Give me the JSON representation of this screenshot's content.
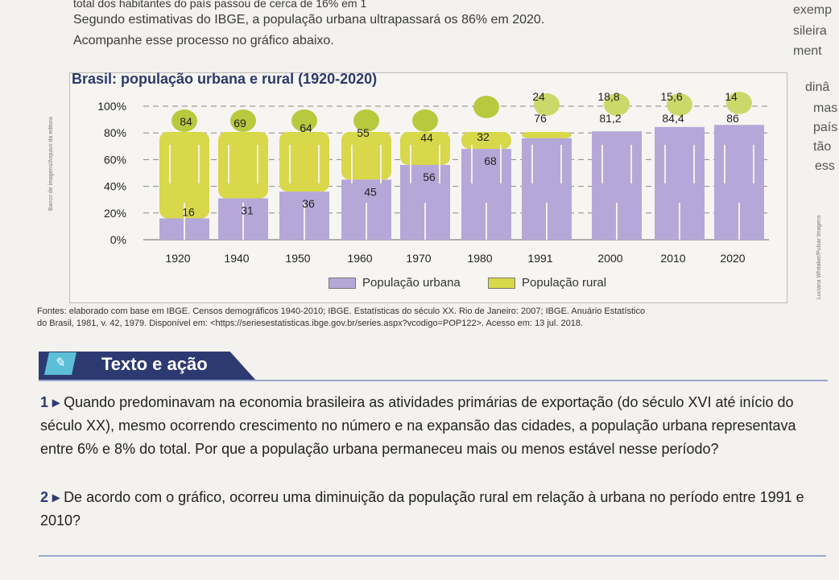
{
  "intro": {
    "line1": "total dos habitantes do país passou de cerca de 16% em 1",
    "line2": "Segundo estimativas do IBGE, a população urbana ultrapassará os 86% em 2020.",
    "line3": "Acompanhe esse processo no gráfico abaixo."
  },
  "side_fragments": [
    "exemp",
    "sileira",
    "ment",
    "dinâ",
    "mas",
    "país",
    "tão",
    "ess"
  ],
  "credits": {
    "left": "Banco de imagens/Arquivo da editora",
    "right": "Luciana Whitaker/Pulsar Imagens"
  },
  "chart_data": {
    "type": "bar",
    "title": "Brasil: população urbana e rural (1920-2020)",
    "categories": [
      "1920",
      "1940",
      "1950",
      "1960",
      "1970",
      "1980",
      "1991",
      "2000",
      "2010",
      "2020"
    ],
    "series": [
      {
        "name": "População urbana",
        "values": [
          16,
          31,
          36,
          45,
          56,
          68,
          76,
          81.2,
          84.4,
          86
        ]
      },
      {
        "name": "População rural",
        "values": [
          84,
          69,
          64,
          55,
          44,
          32,
          24,
          18.8,
          15.6,
          14
        ]
      }
    ],
    "labels_urban": [
      "16",
      "31",
      "36",
      "45",
      "56",
      "68",
      "76",
      "81,2",
      "84,4",
      "86"
    ],
    "labels_rural": [
      "84",
      "69",
      "64",
      "55",
      "44",
      "32",
      "24",
      "18,8",
      "15,6",
      "14"
    ],
    "yticks": [
      "0%",
      "20%",
      "40%",
      "60%",
      "80%",
      "100%"
    ],
    "ylim": [
      0,
      100
    ],
    "colors": {
      "urban": "#b5a8d8",
      "rural": "#d8d84a",
      "head": "#b9c93e",
      "head_late": "#cad96a"
    },
    "legend_position": "bottom-center"
  },
  "legend": {
    "urban": "População urbana",
    "rural": "População rural"
  },
  "source": {
    "line1": "Fontes: elaborado com base em IBGE. Censos demográficos 1940-2010; IBGE. Estatísticas do século XX. Rio de Janeiro: 2007; IBGE. Anuário Estatístico",
    "line2": "do Brasil, 1981, v. 42, 1979. Disponível em: <https://seriesestatisticas.ibge.gov.br/series.aspx?vcodigo=POP122>. Acesso em: 13 jul. 2018."
  },
  "section": {
    "title": "Texto e ação"
  },
  "questions": [
    {
      "num": "1",
      "text": "Quando predominavam na economia brasileira as atividades primárias de exportação (do século XVI até início do século XX), mesmo ocorrendo crescimento no número e na expansão das cidades, a população urbana representava entre 6% e 8% do total. Por que a população urbana permaneceu mais ou menos estável nesse período?"
    },
    {
      "num": "2",
      "text": "De acordo com o gráfico, ocorreu uma diminuição da população rural em relação à urbana no período entre 1991 e 2010?"
    }
  ]
}
